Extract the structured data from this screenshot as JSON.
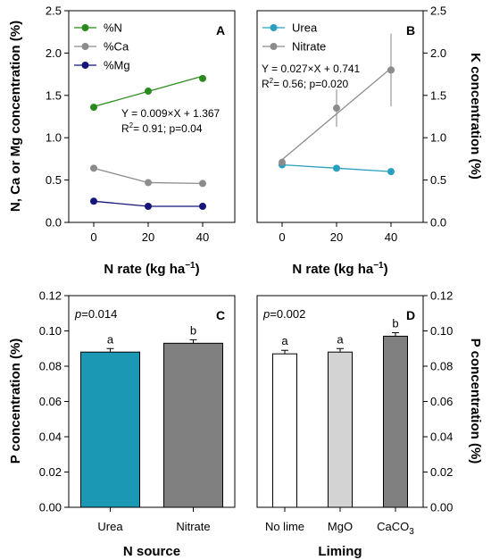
{
  "colors": {
    "N": "#2a8a1e",
    "Ca": "#8c8c8c",
    "Mg": "#15157a",
    "Urea": "#2aa0c0",
    "Nitrate": "#8c8c8c",
    "bar_urea": "#1a98b4",
    "bar_nitrate": "#808080",
    "bar_nolime": "#ffffff",
    "bar_mgo": "#d3d3d3",
    "bar_caco3": "#808080",
    "axis": "#000000"
  },
  "chart_data": [
    {
      "panel": "A",
      "type": "line",
      "xlabel": "N rate (kg ha",
      "xlabel_sup": "−1",
      "xlabel_close": ")",
      "ylabel": "N, Ca or Mg concentration (%)",
      "x": [
        0,
        20,
        40
      ],
      "xticks": [
        "0",
        "20",
        "40"
      ],
      "ylim": [
        0,
        2.5
      ],
      "yticks": [
        "0.0",
        "0.5",
        "1.0",
        "1.5",
        "2.0",
        "2.5"
      ],
      "legend_position": "top-left",
      "series": [
        {
          "name": "%N",
          "values": [
            1.36,
            1.55,
            1.7
          ],
          "color_key": "N"
        },
        {
          "name": "%Ca",
          "values": [
            0.64,
            0.47,
            0.46
          ],
          "color_key": "Ca"
        },
        {
          "name": "%Mg",
          "values": [
            0.25,
            0.19,
            0.19
          ],
          "color_key": "Mg"
        }
      ],
      "trend": {
        "series": "%N",
        "start": [
          0,
          1.367
        ],
        "end": [
          40,
          1.727
        ]
      },
      "annotation_line1": "Y = 0.009×X + 1.367",
      "annotation_line2_a": "R",
      "annotation_line2_sup": "2",
      "annotation_line2_b": "= 0.91; p=0.04"
    },
    {
      "panel": "B",
      "type": "line",
      "xlabel": "N rate (kg ha",
      "xlabel_sup": "−1",
      "xlabel_close": ")",
      "ylabel": "K concentration (%)",
      "x": [
        0,
        20,
        40
      ],
      "xticks": [
        "0",
        "20",
        "40"
      ],
      "ylim": [
        0,
        2.5
      ],
      "yticks": [
        "0.0",
        "0.5",
        "1.0",
        "1.5",
        "2.0",
        "2.5"
      ],
      "legend_position": "top-left",
      "series": [
        {
          "name": "Urea",
          "values": [
            0.68,
            0.64,
            0.6
          ],
          "color_key": "Urea"
        },
        {
          "name": "Nitrate",
          "values": [
            0.71,
            1.35,
            1.8
          ],
          "errors": [
            0.03,
            0.22,
            0.43
          ],
          "color_key": "Nitrate"
        }
      ],
      "trend": {
        "series": "Nitrate",
        "start": [
          0,
          0.741
        ],
        "end": [
          40,
          1.821
        ]
      },
      "annotation_line1": "Y = 0.027×X + 0.741",
      "annotation_line2_a": "R",
      "annotation_line2_sup": "2",
      "annotation_line2_b": "= 0.56; p=0.020"
    },
    {
      "panel": "C",
      "type": "bar",
      "xlabel": "N source",
      "ylabel": "P concentration (%)",
      "categories": [
        "Urea",
        "Nitrate"
      ],
      "values": [
        0.088,
        0.093
      ],
      "errors": [
        0.002,
        0.002
      ],
      "letters": [
        "a",
        "b"
      ],
      "color_keys": [
        "bar_urea",
        "bar_nitrate"
      ],
      "ylim": [
        0,
        0.12
      ],
      "yticks": [
        "0.00",
        "0.02",
        "0.04",
        "0.06",
        "0.08",
        "0.10",
        "0.12"
      ],
      "pvalue_label": "p",
      "pvalue_text": "=0.014"
    },
    {
      "panel": "D",
      "type": "bar",
      "xlabel": "Liming",
      "ylabel": "P concentration (%)",
      "categories": [
        "No lime",
        "MgO",
        "CaCO"
      ],
      "category_sub": [
        "",
        "",
        "3"
      ],
      "values": [
        0.087,
        0.088,
        0.097
      ],
      "errors": [
        0.002,
        0.002,
        0.002
      ],
      "letters": [
        "a",
        "a",
        "b"
      ],
      "color_keys": [
        "bar_nolime",
        "bar_mgo",
        "bar_caco3"
      ],
      "ylim": [
        0,
        0.12
      ],
      "yticks": [
        "0.00",
        "0.02",
        "0.04",
        "0.06",
        "0.08",
        "0.10",
        "0.12"
      ],
      "pvalue_label": "p",
      "pvalue_text": "=0.002"
    }
  ]
}
